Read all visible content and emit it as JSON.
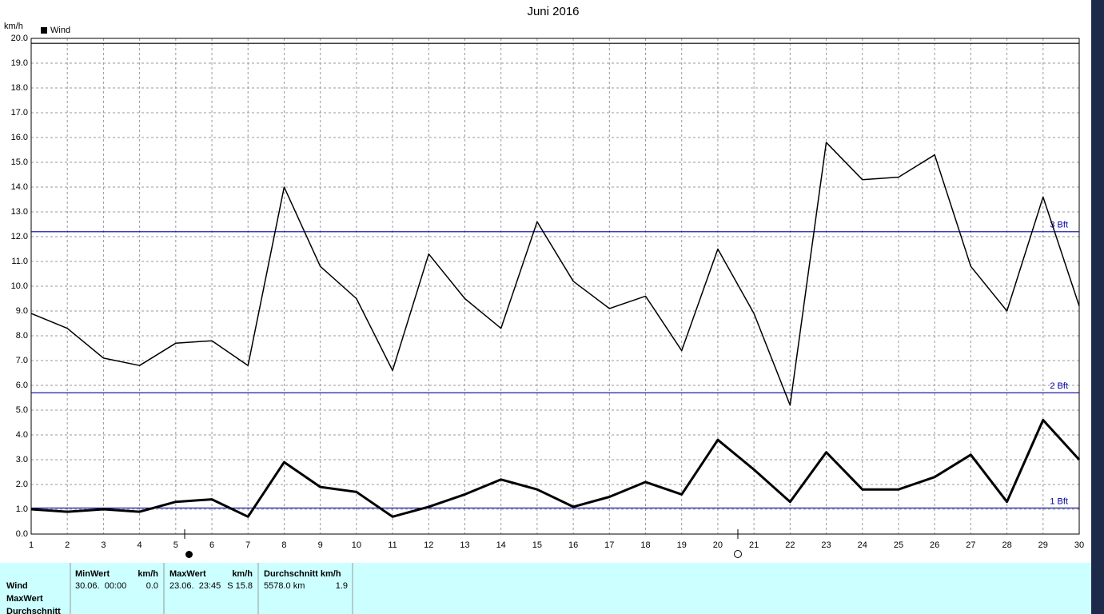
{
  "chart_data": {
    "type": "line",
    "title": "Juni 2016",
    "y_unit": "km/h",
    "x": [
      1,
      2,
      3,
      4,
      5,
      6,
      7,
      8,
      9,
      10,
      11,
      12,
      13,
      14,
      15,
      16,
      17,
      18,
      19,
      20,
      21,
      22,
      23,
      24,
      25,
      26,
      27,
      28,
      29,
      30
    ],
    "xlim": [
      1,
      30
    ],
    "xticks": [
      1,
      2,
      3,
      4,
      5,
      6,
      7,
      8,
      9,
      10,
      11,
      12,
      13,
      14,
      15,
      16,
      17,
      18,
      19,
      20,
      21,
      22,
      23,
      24,
      25,
      26,
      27,
      28,
      29,
      30
    ],
    "ylim": [
      0,
      20
    ],
    "yticks": [
      {
        "value": 0,
        "label": "0.0"
      },
      {
        "value": 1,
        "label": "1.0"
      },
      {
        "value": 2,
        "label": "2.0"
      },
      {
        "value": 3,
        "label": "3.0"
      },
      {
        "value": 4,
        "label": "4.0"
      },
      {
        "value": 5,
        "label": "5.0"
      },
      {
        "value": 6,
        "label": "6.0"
      },
      {
        "value": 7,
        "label": "7.0"
      },
      {
        "value": 8,
        "label": "8.0"
      },
      {
        "value": 9,
        "label": "9.0"
      },
      {
        "value": 10,
        "label": "10.0"
      },
      {
        "value": 11,
        "label": "11.0"
      },
      {
        "value": 12,
        "label": "12.0"
      },
      {
        "value": 13,
        "label": "13.0"
      },
      {
        "value": 14,
        "label": "14.0"
      },
      {
        "value": 15,
        "label": "15.0"
      },
      {
        "value": 16,
        "label": "16.0"
      },
      {
        "value": 17,
        "label": "17.0"
      },
      {
        "value": 18,
        "label": "18.0"
      },
      {
        "value": 19,
        "label": "19.0"
      },
      {
        "value": 20,
        "label": "20.0"
      }
    ],
    "grid": true,
    "legend": "top-left",
    "series": [
      {
        "name": "Wind",
        "color": "#000000",
        "width": 3,
        "values": [
          1.0,
          0.9,
          1.0,
          0.9,
          1.3,
          1.4,
          0.7,
          2.9,
          1.9,
          1.7,
          0.7,
          1.1,
          1.6,
          2.2,
          1.8,
          1.1,
          1.5,
          2.1,
          1.6,
          3.8,
          2.6,
          1.3,
          3.3,
          1.8,
          1.8,
          2.3,
          3.2,
          1.3,
          4.6,
          3.0
        ]
      },
      {
        "color": "#000000",
        "width": 1.5,
        "values": [
          8.9,
          8.3,
          7.1,
          6.8,
          7.7,
          7.8,
          6.8,
          14.0,
          10.8,
          9.5,
          6.6,
          11.3,
          9.5,
          8.3,
          12.6,
          10.2,
          9.1,
          9.6,
          7.4,
          11.5,
          8.9,
          5.2,
          15.8,
          14.3,
          14.4,
          15.3,
          10.8,
          9.0,
          13.6,
          9.2
        ]
      }
    ],
    "reference_lines": [
      {
        "value": 19.8,
        "color": "#000000"
      },
      {
        "value": 12.2,
        "label": "3 Bft",
        "color": "#0000a0"
      },
      {
        "value": 5.7,
        "label": "2 Bft",
        "color": "#0000a0"
      },
      {
        "value": 1.05,
        "label": "1 Bft",
        "color": "#0000a0"
      }
    ]
  },
  "table": {
    "header": [
      "MinWert",
      "km/h",
      "MaxWert",
      "km/h",
      "Durchschnitt km/h"
    ],
    "rows": [
      [
        "Wind",
        "30.06.  00:00",
        "0.0",
        "23.06.  23:45",
        "S 15.8",
        "5578.0 km",
        "1.9"
      ],
      [
        "MaxWert"
      ],
      [
        "Durchschnitt"
      ]
    ]
  }
}
